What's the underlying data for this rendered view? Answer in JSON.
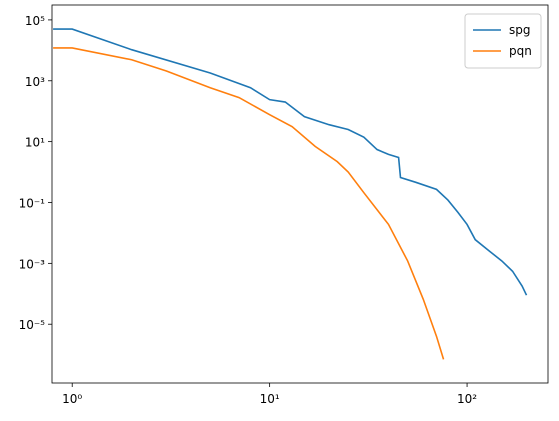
{
  "chart_data": {
    "type": "line",
    "log_x": true,
    "log_y": true,
    "x": [
      0.8,
      1,
      2,
      5,
      8,
      10,
      12,
      15,
      20,
      25,
      30,
      35,
      40,
      45,
      46,
      55,
      70,
      80,
      90,
      100,
      110,
      130,
      150,
      170,
      190,
      200
    ],
    "series": [
      {
        "name": "spg",
        "color": "#1f77b4",
        "x": [
          0.8,
          1,
          2,
          5,
          8,
          10,
          12,
          15,
          20,
          25,
          30,
          35,
          40,
          45,
          46,
          55,
          70,
          80,
          90,
          100,
          110,
          130,
          150,
          170,
          190,
          200
        ],
        "values": [
          50000,
          50000,
          10500,
          1800,
          590,
          240,
          200,
          66,
          36,
          25,
          14,
          5.5,
          3.8,
          3,
          0.66,
          0.46,
          0.27,
          0.12,
          0.047,
          0.019,
          0.006,
          0.0025,
          0.0012,
          0.00055,
          0.00018,
          9e-05
        ]
      },
      {
        "name": "pqn",
        "color": "#ff7f0e",
        "x": [
          0.8,
          1,
          2,
          3,
          5,
          7,
          10,
          13,
          17,
          22,
          25,
          30,
          40,
          50,
          60,
          70,
          76
        ],
        "values": [
          12000,
          12000,
          4900,
          2100,
          590,
          280,
          77,
          31,
          7,
          2.2,
          1,
          0.21,
          0.019,
          0.0012,
          6.6e-05,
          4e-06,
          7e-07
        ]
      }
    ],
    "xlim": [
      0.79,
      257
    ],
    "ylim": [
      1.17e-07,
      309000
    ],
    "xticks": [
      {
        "value": 1,
        "label": "10⁰"
      },
      {
        "value": 10,
        "label": "10¹"
      },
      {
        "value": 100,
        "label": "10²"
      }
    ],
    "yticks": [
      {
        "value": 1e-05,
        "label": "10⁻⁵"
      },
      {
        "value": 0.001,
        "label": "10⁻³"
      },
      {
        "value": 0.1,
        "label": "10⁻¹"
      },
      {
        "value": 10,
        "label": "10¹"
      },
      {
        "value": 1000,
        "label": "10³"
      },
      {
        "value": 100000,
        "label": "10⁵"
      }
    ],
    "legend": "upper right"
  }
}
